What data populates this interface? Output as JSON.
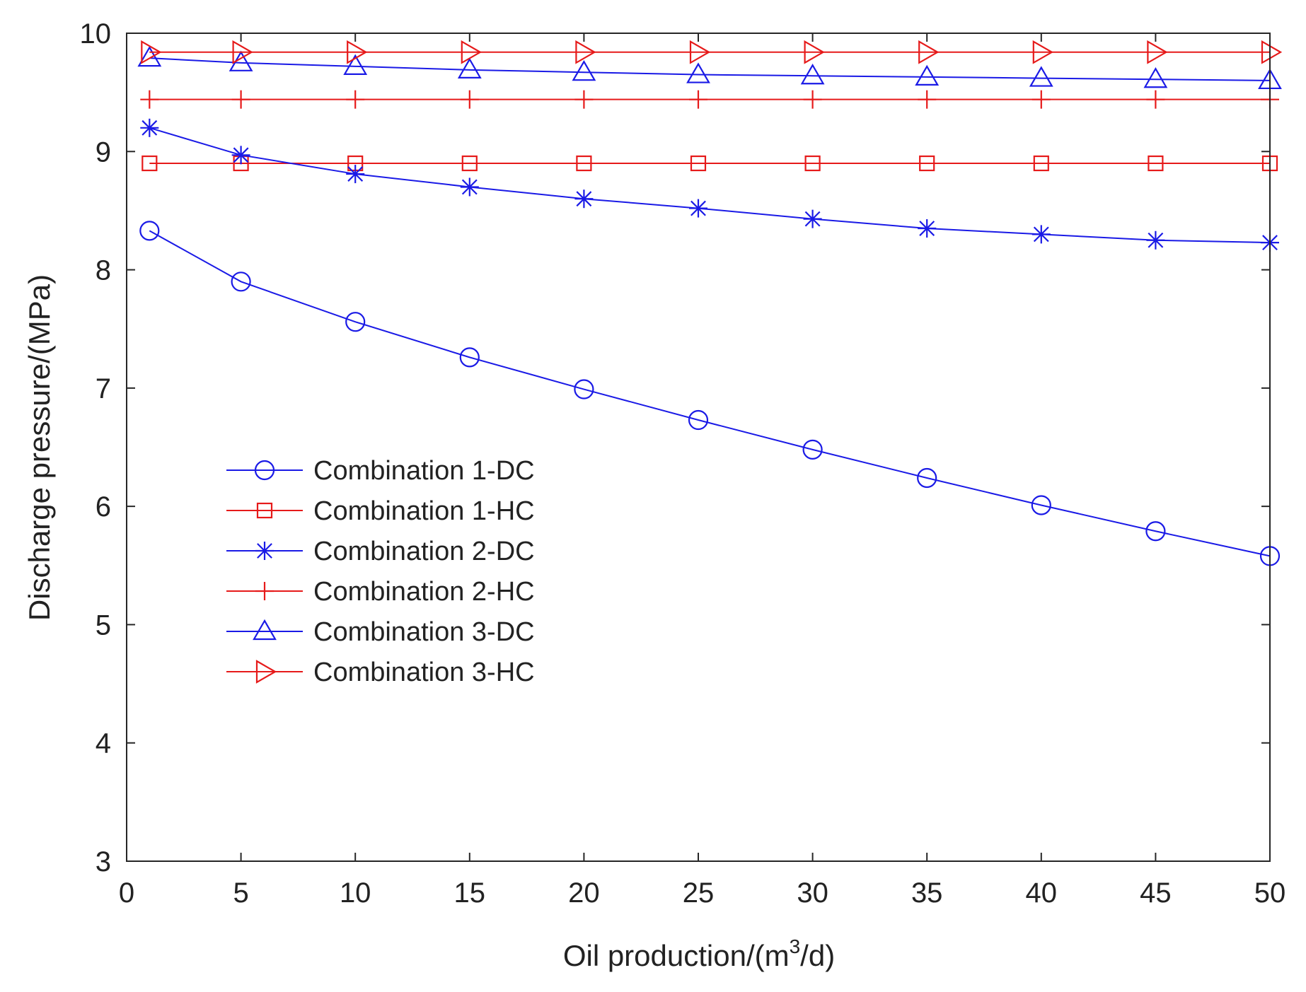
{
  "chart_data": {
    "type": "line",
    "title": "",
    "xlabel": "Oil production/(m",
    "xlabel_superscript": "3",
    "xlabel_suffix": "/d)",
    "ylabel": "Discharge pressure/(MPa)",
    "xlim": [
      0,
      50
    ],
    "ylim": [
      3,
      10
    ],
    "grid": false,
    "legend_position": "center-left",
    "x_ticks": [
      0,
      5,
      10,
      15,
      20,
      25,
      30,
      35,
      40,
      45,
      50
    ],
    "x_tick_labels": [
      "0",
      "5",
      "10",
      "15",
      "20",
      "25",
      "30",
      "35",
      "40",
      "45",
      "50"
    ],
    "y_ticks": [
      3,
      4,
      5,
      6,
      7,
      8,
      9,
      10
    ],
    "y_tick_labels": [
      "3",
      "4",
      "5",
      "6",
      "7",
      "8",
      "9",
      "10"
    ],
    "x": [
      1,
      5,
      10,
      15,
      20,
      25,
      30,
      35,
      40,
      45,
      50
    ],
    "series": [
      {
        "name": "Combination 1-DC",
        "color": "#1a1ae6",
        "marker": "circle",
        "values": [
          8.33,
          7.9,
          7.56,
          7.26,
          6.99,
          6.73,
          6.48,
          6.24,
          6.01,
          5.79,
          5.58
        ]
      },
      {
        "name": "Combination 1-HC",
        "color": "#e61a1a",
        "marker": "square",
        "values": [
          8.9,
          8.9,
          8.9,
          8.9,
          8.9,
          8.9,
          8.9,
          8.9,
          8.9,
          8.9,
          8.9
        ]
      },
      {
        "name": "Combination 2-DC",
        "color": "#1a1ae6",
        "marker": "asterisk",
        "values": [
          9.2,
          8.97,
          8.81,
          8.7,
          8.6,
          8.52,
          8.43,
          8.35,
          8.3,
          8.25,
          8.23
        ]
      },
      {
        "name": "Combination 2-HC",
        "color": "#e61a1a",
        "marker": "plus",
        "values": [
          9.44,
          9.44,
          9.44,
          9.44,
          9.44,
          9.44,
          9.44,
          9.44,
          9.44,
          9.44,
          9.44
        ]
      },
      {
        "name": "Combination 3-DC",
        "color": "#1a1ae6",
        "marker": "triangle-up",
        "values": [
          9.79,
          9.75,
          9.72,
          9.69,
          9.67,
          9.65,
          9.64,
          9.63,
          9.62,
          9.61,
          9.6
        ]
      },
      {
        "name": "Combination 3-HC",
        "color": "#e61a1a",
        "marker": "triangle-right",
        "values": [
          9.84,
          9.84,
          9.84,
          9.84,
          9.84,
          9.84,
          9.84,
          9.84,
          9.84,
          9.84,
          9.84
        ]
      }
    ]
  }
}
